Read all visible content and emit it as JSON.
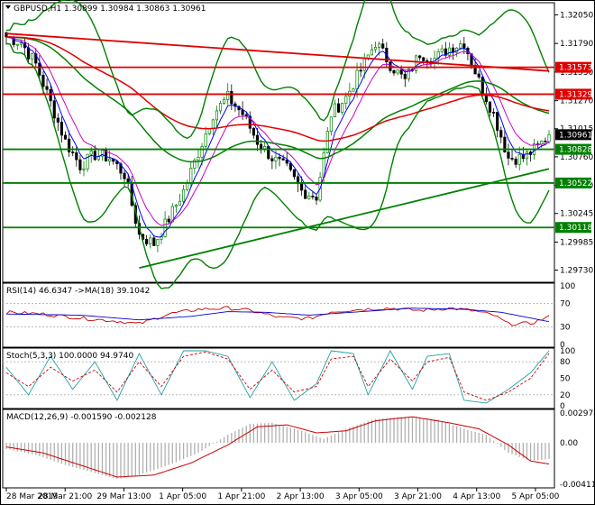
{
  "chart_data": [
    {
      "panel": "main",
      "type": "candlestick",
      "symbol_label": "GBPUSD,H1",
      "ohlc_label": "1.30899 1.30984 1.30863 1.30961",
      "ylim": [
        1.2962,
        1.3216
      ],
      "y_ticks": [
        "1.32050",
        "1.31790",
        "1.31530",
        "1.31270",
        "1.31015",
        "1.30760",
        "1.30500",
        "1.30245",
        "1.29985",
        "1.29730"
      ],
      "x_ticks": [
        "28 Mar 2019",
        "28 Mar 21:00",
        "29 Mar 13:00",
        "1 Apr 05:00",
        "1 Apr 21:00",
        "2 Apr 13:00",
        "3 Apr 05:00",
        "3 Apr 21:00",
        "4 Apr 13:00",
        "5 Apr 05:00"
      ],
      "bar_count": 148,
      "close_path": [
        [
          0,
          1.3185
        ],
        [
          4,
          1.318
        ],
        [
          8,
          1.316
        ],
        [
          12,
          1.3125
        ],
        [
          16,
          1.309
        ],
        [
          20,
          1.3068
        ],
        [
          24,
          1.3078
        ],
        [
          28,
          1.3075
        ],
        [
          32,
          1.306
        ],
        [
          36,
          1.3005
        ],
        [
          40,
          1.2997
        ],
        [
          44,
          1.302
        ],
        [
          48,
          1.3045
        ],
        [
          52,
          1.308
        ],
        [
          56,
          1.3115
        ],
        [
          60,
          1.313
        ],
        [
          64,
          1.3115
        ],
        [
          68,
          1.309
        ],
        [
          72,
          1.3075
        ],
        [
          76,
          1.3065
        ],
        [
          80,
          1.3045
        ],
        [
          84,
          1.304
        ],
        [
          88,
          1.3115
        ],
        [
          92,
          1.313
        ],
        [
          96,
          1.3155
        ],
        [
          100,
          1.318
        ],
        [
          104,
          1.316
        ],
        [
          108,
          1.3145
        ],
        [
          112,
          1.317
        ],
        [
          116,
          1.3165
        ],
        [
          120,
          1.3175
        ],
        [
          124,
          1.318
        ],
        [
          128,
          1.3145
        ],
        [
          132,
          1.3115
        ],
        [
          136,
          1.3075
        ],
        [
          140,
          1.3075
        ],
        [
          144,
          1.3085
        ],
        [
          147,
          1.3096
        ]
      ],
      "current_price": "1.30961",
      "levels": [
        {
          "price": 1.31573,
          "label": "1.31573",
          "color": "#e00000"
        },
        {
          "price": 1.31329,
          "label": "1.31329",
          "color": "#e00000"
        },
        {
          "price": 1.30828,
          "label": "1.30828",
          "color": "#008000"
        },
        {
          "price": 1.30522,
          "label": "1.30522",
          "color": "#008000"
        },
        {
          "price": 1.30118,
          "label": "1.30118",
          "color": "#008000"
        }
      ],
      "trendlines": [
        {
          "from": [
            0,
            1.3188
          ],
          "to": [
            147,
            1.3154
          ],
          "color": "#e00000"
        },
        {
          "from": [
            36,
            1.2975
          ],
          "to": [
            147,
            1.3065
          ],
          "color": "#008000"
        }
      ],
      "colors": {
        "bull": "#008000",
        "bear": "#000000",
        "ma_long": "#e00000",
        "bands": "#008000"
      }
    },
    {
      "panel": "rsi",
      "type": "line",
      "title": "RSI(14) 46.6347 ->MA(18) 39.1042",
      "ylim": [
        0,
        100
      ],
      "y_ticks": [
        "100",
        "70",
        "30",
        "0"
      ],
      "series": [
        {
          "color": "#cc0000",
          "values": [
            [
              0,
              55
            ],
            [
              10,
              52
            ],
            [
              20,
              45
            ],
            [
              30,
              40
            ],
            [
              36,
              35
            ],
            [
              44,
              52
            ],
            [
              52,
              60
            ],
            [
              60,
              62
            ],
            [
              66,
              58
            ],
            [
              74,
              46
            ],
            [
              82,
              44
            ],
            [
              88,
              56
            ],
            [
              96,
              60
            ],
            [
              104,
              62
            ],
            [
              112,
              58
            ],
            [
              120,
              62
            ],
            [
              126,
              58
            ],
            [
              132,
              50
            ],
            [
              136,
              35
            ],
            [
              142,
              36
            ],
            [
              147,
              47
            ]
          ]
        },
        {
          "color": "#0000cc",
          "values": [
            [
              0,
              52
            ],
            [
              20,
              50
            ],
            [
              36,
              42
            ],
            [
              50,
              48
            ],
            [
              60,
              56
            ],
            [
              70,
              55
            ],
            [
              82,
              50
            ],
            [
              96,
              56
            ],
            [
              110,
              62
            ],
            [
              124,
              60
            ],
            [
              134,
              55
            ],
            [
              147,
              39
            ]
          ]
        }
      ]
    },
    {
      "panel": "stochastic",
      "type": "line",
      "title": "Stoch(5,3,3) 100.0000 94.9740",
      "ylim": [
        0,
        100
      ],
      "y_ticks": [
        "100",
        "80",
        "50",
        "20",
        "0"
      ],
      "series": [
        {
          "color": "#20a0a0",
          "values": [
            [
              0,
              70
            ],
            [
              6,
              20
            ],
            [
              12,
              90
            ],
            [
              18,
              30
            ],
            [
              24,
              80
            ],
            [
              30,
              10
            ],
            [
              36,
              95
            ],
            [
              42,
              20
            ],
            [
              48,
              100
            ],
            [
              54,
              100
            ],
            [
              60,
              90
            ],
            [
              66,
              15
            ],
            [
              72,
              80
            ],
            [
              78,
              10
            ],
            [
              84,
              40
            ],
            [
              88,
              100
            ],
            [
              94,
              95
            ],
            [
              98,
              20
            ],
            [
              104,
              100
            ],
            [
              110,
              30
            ],
            [
              114,
              90
            ],
            [
              120,
              95
            ],
            [
              124,
              10
            ],
            [
              130,
              5
            ],
            [
              136,
              30
            ],
            [
              142,
              60
            ],
            [
              147,
              100
            ]
          ]
        },
        {
          "color": "#cc0000",
          "values": [
            [
              0,
              60
            ],
            [
              6,
              35
            ],
            [
              12,
              70
            ],
            [
              18,
              45
            ],
            [
              24,
              65
            ],
            [
              30,
              25
            ],
            [
              36,
              80
            ],
            [
              42,
              35
            ],
            [
              48,
              90
            ],
            [
              54,
              98
            ],
            [
              60,
              85
            ],
            [
              66,
              30
            ],
            [
              72,
              65
            ],
            [
              78,
              25
            ],
            [
              84,
              35
            ],
            [
              88,
              85
            ],
            [
              94,
              90
            ],
            [
              98,
              35
            ],
            [
              104,
              85
            ],
            [
              110,
              45
            ],
            [
              114,
              80
            ],
            [
              120,
              88
            ],
            [
              124,
              25
            ],
            [
              130,
              10
            ],
            [
              136,
              25
            ],
            [
              142,
              50
            ],
            [
              147,
              95
            ]
          ]
        }
      ]
    },
    {
      "panel": "macd",
      "type": "bar",
      "title": "MACD(12,26,9) -0.001590 -0.002128",
      "ylim": [
        -0.004117,
        0.002974
      ],
      "y_ticks": [
        "0.002974",
        "0.00",
        "-0.004117"
      ],
      "histogram": [
        [
          0,
          -0.0006
        ],
        [
          8,
          -0.0012
        ],
        [
          16,
          -0.0022
        ],
        [
          24,
          -0.003
        ],
        [
          30,
          -0.0036
        ],
        [
          36,
          -0.0032
        ],
        [
          44,
          -0.0022
        ],
        [
          52,
          -0.001
        ],
        [
          60,
          0.0008
        ],
        [
          66,
          0.0019
        ],
        [
          72,
          0.002
        ],
        [
          80,
          0.0012
        ],
        [
          86,
          0.0004
        ],
        [
          92,
          0.0014
        ],
        [
          100,
          0.0024
        ],
        [
          108,
          0.0026
        ],
        [
          116,
          0.0024
        ],
        [
          124,
          0.0014
        ],
        [
          130,
          0.0008
        ],
        [
          136,
          -0.001
        ],
        [
          142,
          -0.0018
        ],
        [
          147,
          -0.0016
        ]
      ],
      "signal": [
        [
          0,
          -0.0004
        ],
        [
          10,
          -0.001
        ],
        [
          20,
          -0.0022
        ],
        [
          30,
          -0.0034
        ],
        [
          40,
          -0.0032
        ],
        [
          50,
          -0.002
        ],
        [
          60,
          -0.0002
        ],
        [
          68,
          0.0016
        ],
        [
          76,
          0.0018
        ],
        [
          84,
          0.001
        ],
        [
          92,
          0.0012
        ],
        [
          100,
          0.0022
        ],
        [
          110,
          0.0026
        ],
        [
          120,
          0.002
        ],
        [
          128,
          0.0014
        ],
        [
          136,
          -0.0002
        ],
        [
          142,
          -0.0018
        ],
        [
          147,
          -0.0021
        ]
      ],
      "colors": {
        "histogram": "#b0b0b0",
        "signal": "#cc0000"
      }
    }
  ]
}
